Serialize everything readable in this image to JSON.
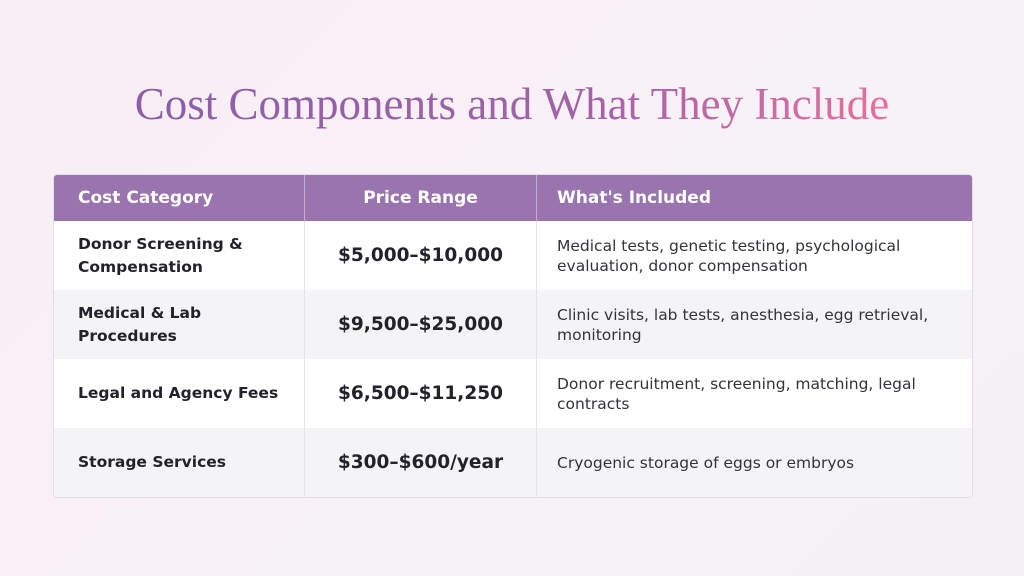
{
  "title": "Cost Components and What They Include",
  "table": {
    "headers": [
      "Cost Category",
      "Price Range",
      "What's Included"
    ],
    "rows": [
      {
        "category": "Donor Screening & Compensation",
        "price": "$5,000–$10,000",
        "included": "Medical tests, genetic testing, psychological evaluation, donor compensation"
      },
      {
        "category": "Medical & Lab Procedures",
        "price": "$9,500–$25,000",
        "included": "Clinic visits, lab tests, anesthesia, egg retrieval, monitoring"
      },
      {
        "category": "Legal and Agency Fees",
        "price": "$6,500–$11,250",
        "included": "Donor recruitment, screening, matching, legal contracts"
      },
      {
        "category": "Storage Services",
        "price": "$300–$600/year",
        "included": "Cryogenic storage of eggs or embryos"
      }
    ]
  },
  "colors": {
    "header": "#9a74ae",
    "title_start": "#8c5fa8",
    "title_end": "#e8709e"
  }
}
